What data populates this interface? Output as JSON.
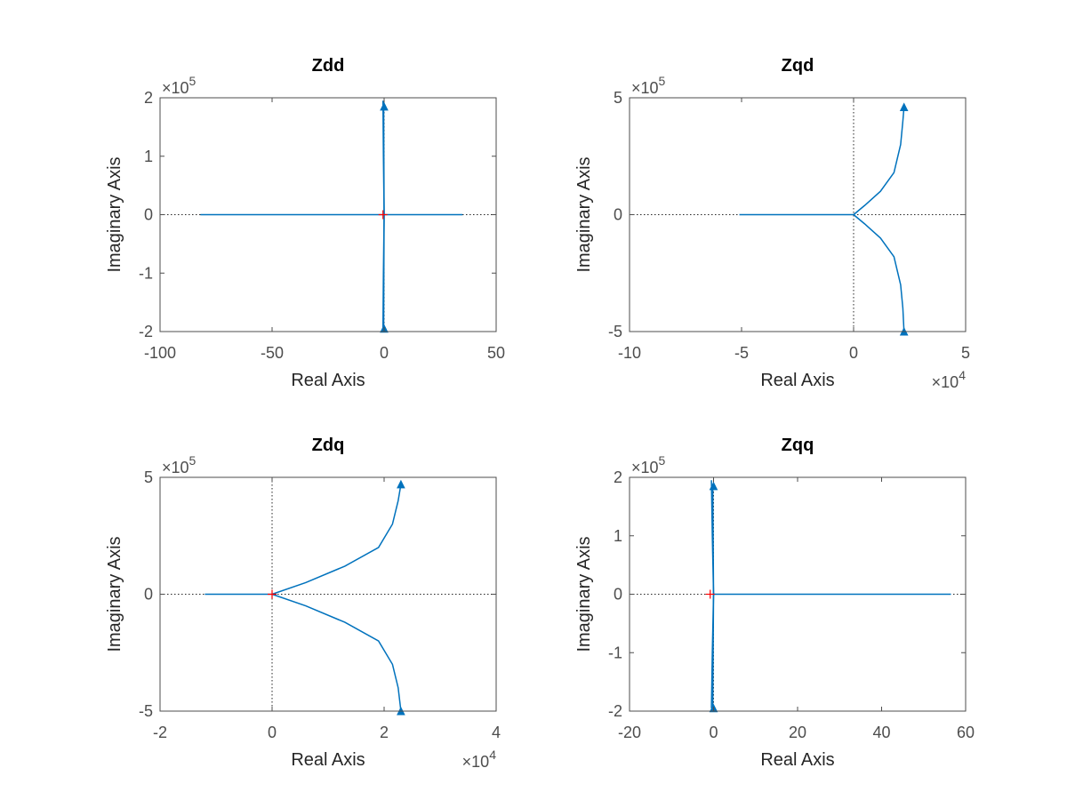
{
  "colors": {
    "series": "#0072BD",
    "marker": "#FF0000",
    "axis": "#4D4D4D",
    "zero_line": "#262626"
  },
  "chart_data": [
    {
      "type": "line",
      "title": "Zdd",
      "xlabel": "Real Axis",
      "ylabel": "Imaginary Axis",
      "xlim": [
        -100,
        50
      ],
      "ylim": [
        -200000,
        200000
      ],
      "xticks": [
        -100,
        -50,
        0,
        50
      ],
      "xtick_labels": [
        "-100",
        "-50",
        "0",
        "50"
      ],
      "yticks": [
        -200000,
        -100000,
        0,
        100000,
        200000
      ],
      "ytick_labels": [
        "-2",
        "-1",
        "0",
        "1",
        "2"
      ],
      "x_exponent": "",
      "y_exponent": "5",
      "grid": false,
      "series": [
        {
          "x": [
            -0.5,
            -0.3,
            0,
            -0.1,
            -0.2
          ],
          "y": [
            -195000,
            -100000,
            0,
            100000,
            185000
          ]
        },
        {
          "x": [
            -0.5,
            -0.3,
            0,
            -0.1,
            -0.2
          ],
          "y": [
            195000,
            100000,
            0,
            -100000,
            -195000
          ]
        },
        {
          "x": [
            -82,
            -40,
            0,
            20,
            35
          ],
          "y": [
            0,
            0,
            0,
            0,
            0
          ]
        }
      ],
      "arrows": [
        {
          "x": 0,
          "y": 185000,
          "dir": "up"
        },
        {
          "x": 0,
          "y": -195000,
          "dir": "down"
        }
      ],
      "markers": [
        {
          "x": -0.5,
          "y": 0
        }
      ]
    },
    {
      "type": "line",
      "title": "Zqd",
      "xlabel": "Real Axis",
      "ylabel": "Imaginary Axis",
      "xlim": [
        -100000,
        50000
      ],
      "ylim": [
        -500000,
        500000
      ],
      "xticks": [
        -100000,
        -50000,
        0,
        50000
      ],
      "xtick_labels": [
        "-10",
        "-5",
        "0",
        "5"
      ],
      "yticks": [
        -500000,
        0,
        500000
      ],
      "ytick_labels": [
        "-5",
        "0",
        "5"
      ],
      "x_exponent": "4",
      "y_exponent": "5",
      "grid": false,
      "series": [
        {
          "x": [
            0,
            5000,
            12000,
            18000,
            21000,
            22000,
            22500
          ],
          "y": [
            0,
            40000,
            100000,
            180000,
            300000,
            400000,
            460000
          ]
        },
        {
          "x": [
            0,
            5000,
            12000,
            18000,
            21000,
            22000,
            22500
          ],
          "y": [
            0,
            -40000,
            -100000,
            -180000,
            -300000,
            -400000,
            -500000
          ]
        },
        {
          "x": [
            -51000,
            -25000,
            -10000,
            0
          ],
          "y": [
            0,
            0,
            0,
            0
          ]
        }
      ],
      "arrows": [
        {
          "x": 22500,
          "y": 460000,
          "dir": "up"
        },
        {
          "x": 22500,
          "y": -500000,
          "dir": "down"
        }
      ],
      "markers": []
    },
    {
      "type": "line",
      "title": "Zdq",
      "xlabel": "Real Axis",
      "ylabel": "Imaginary Axis",
      "xlim": [
        -20000,
        40000
      ],
      "ylim": [
        -500000,
        500000
      ],
      "xticks": [
        -20000,
        0,
        20000,
        40000
      ],
      "xtick_labels": [
        "-2",
        "0",
        "2",
        "4"
      ],
      "yticks": [
        -500000,
        0,
        500000
      ],
      "ytick_labels": [
        "-5",
        "0",
        "5"
      ],
      "x_exponent": "4",
      "y_exponent": "5",
      "grid": false,
      "series": [
        {
          "x": [
            0,
            6000,
            13000,
            19000,
            21500,
            22500,
            23000
          ],
          "y": [
            0,
            50000,
            120000,
            200000,
            300000,
            400000,
            470000
          ]
        },
        {
          "x": [
            0,
            6000,
            13000,
            19000,
            21500,
            22500,
            23000
          ],
          "y": [
            0,
            -50000,
            -120000,
            -200000,
            -300000,
            -400000,
            -500000
          ]
        },
        {
          "x": [
            -12000,
            -6000,
            0
          ],
          "y": [
            0,
            0,
            0
          ]
        }
      ],
      "arrows": [
        {
          "x": 23000,
          "y": 470000,
          "dir": "up"
        },
        {
          "x": 23000,
          "y": -500000,
          "dir": "down"
        }
      ],
      "markers": [
        {
          "x": 0,
          "y": 0
        }
      ]
    },
    {
      "type": "line",
      "title": "Zqq",
      "xlabel": "Real Axis",
      "ylabel": "Imaginary Axis",
      "xlim": [
        -20,
        60
      ],
      "ylim": [
        -200000,
        200000
      ],
      "xticks": [
        -20,
        0,
        20,
        40,
        60
      ],
      "xtick_labels": [
        "-20",
        "0",
        "20",
        "40",
        "60"
      ],
      "yticks": [
        -200000,
        -100000,
        0,
        100000,
        200000
      ],
      "ytick_labels": [
        "-2",
        "-1",
        "0",
        "1",
        "2"
      ],
      "x_exponent": "",
      "y_exponent": "5",
      "grid": false,
      "series": [
        {
          "x": [
            -0.5,
            -0.3,
            0,
            -0.1,
            -0.2
          ],
          "y": [
            -195000,
            -100000,
            0,
            100000,
            185000
          ]
        },
        {
          "x": [
            -0.5,
            -0.3,
            0,
            -0.1,
            -0.2
          ],
          "y": [
            195000,
            100000,
            0,
            -100000,
            -195000
          ]
        },
        {
          "x": [
            0,
            20,
            40,
            56.5
          ],
          "y": [
            0,
            0,
            0,
            0
          ]
        }
      ],
      "arrows": [
        {
          "x": 0,
          "y": 185000,
          "dir": "up"
        },
        {
          "x": 0,
          "y": -195000,
          "dir": "down"
        }
      ],
      "markers": [
        {
          "x": -0.8,
          "y": 0
        }
      ]
    }
  ]
}
